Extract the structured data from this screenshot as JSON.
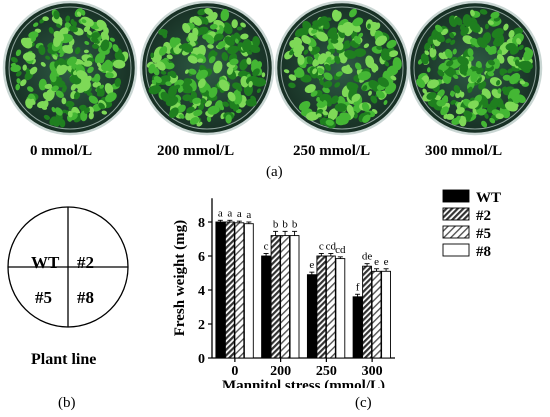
{
  "panel_a": {
    "label": "(a)",
    "plates": [
      {
        "label": "0 mmol/L"
      },
      {
        "label": "200 mmol/L"
      },
      {
        "label": "250 mmol/L"
      },
      {
        "label": "300 mmol/L"
      }
    ]
  },
  "panel_b": {
    "label": "(b)",
    "caption": "Plant line",
    "quadrants": [
      "WT",
      "#2",
      "#5",
      "#8"
    ]
  },
  "panel_c": {
    "label": "(c)"
  },
  "colors": {
    "plate_bg": "#1d3a2c",
    "plate_rim": "#c9d6d3",
    "leaf_light": "#7ed957",
    "leaf_mid": "#44b734",
    "leaf_dark": "#1f7f1f",
    "bar_wt": "#000000",
    "bar_line8": "#ffffff"
  },
  "chart_data": {
    "type": "bar",
    "xlabel": "Mannitol  stress (mmol/L)",
    "ylabel": "Fresh weight (mg)",
    "ylim": [
      0,
      10
    ],
    "yticks": [
      0,
      2,
      4,
      6,
      8
    ],
    "categories": [
      "0",
      "200",
      "250",
      "300"
    ],
    "legend_position": "right",
    "series": [
      {
        "name": "WT",
        "fill": "black",
        "values": [
          8.0,
          6.0,
          4.9,
          3.6
        ],
        "errors": [
          0.1,
          0.15,
          0.15,
          0.15
        ],
        "letters": [
          "a",
          "c",
          "e",
          "f"
        ]
      },
      {
        "name": "#2",
        "fill": "dense-hatch",
        "values": [
          8.0,
          7.2,
          6.0,
          5.4
        ],
        "errors": [
          0.1,
          0.25,
          0.15,
          0.15
        ],
        "letters": [
          "a",
          "b",
          "c",
          "de"
        ]
      },
      {
        "name": "#5",
        "fill": "light-hatch",
        "values": [
          7.95,
          7.2,
          6.0,
          5.1
        ],
        "errors": [
          0.1,
          0.25,
          0.15,
          0.15
        ],
        "letters": [
          "a",
          "b",
          "cd",
          "e"
        ]
      },
      {
        "name": "#8",
        "fill": "white",
        "values": [
          7.9,
          7.2,
          5.85,
          5.1
        ],
        "errors": [
          0.1,
          0.25,
          0.1,
          0.15
        ],
        "letters": [
          "a",
          "b",
          "cd",
          "e"
        ]
      }
    ]
  }
}
